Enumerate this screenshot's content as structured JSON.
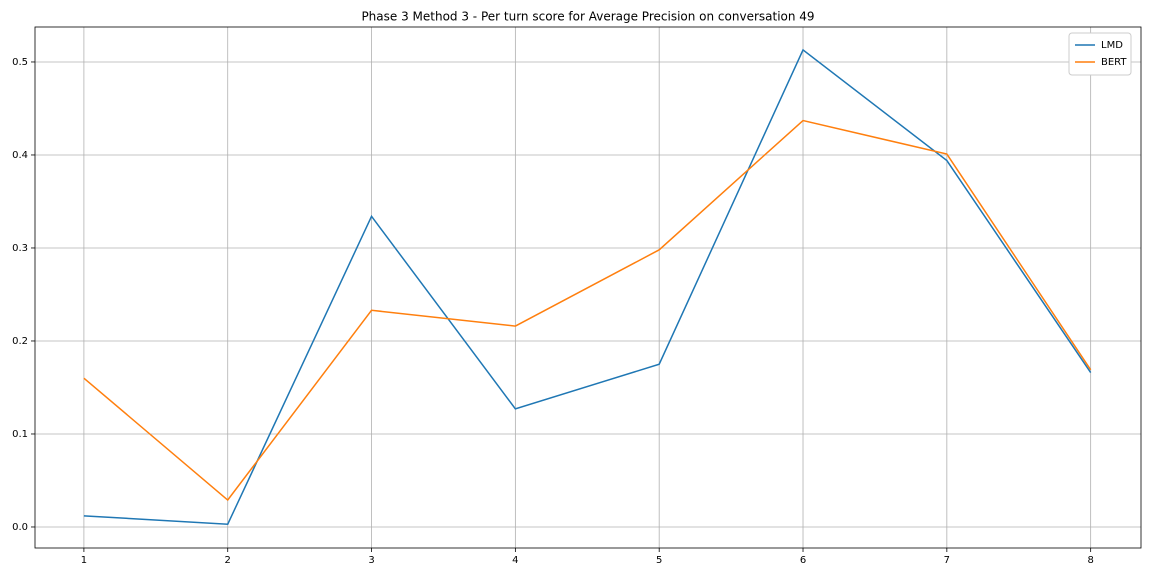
{
  "chart_data": {
    "type": "line",
    "title": "Phase 3 Method 3 - Per turn score for Average Precision on conversation 49",
    "x": [
      1,
      2,
      3,
      4,
      5,
      6,
      7,
      8
    ],
    "series": [
      {
        "name": "LMD",
        "color": "#1f77b4",
        "values": [
          0.012,
          0.003,
          0.334,
          0.127,
          0.175,
          0.513,
          0.394,
          0.166
        ]
      },
      {
        "name": "BERT",
        "color": "#ff7f0e",
        "values": [
          0.16,
          0.029,
          0.233,
          0.216,
          0.298,
          0.437,
          0.401,
          0.169
        ]
      }
    ],
    "xlim": [
      0.66,
      8.35
    ],
    "xticks": [
      1,
      2,
      3,
      4,
      5,
      6,
      7,
      8
    ],
    "ylim": [
      -0.0226,
      0.5376
    ],
    "yticks": [
      {
        "value": 0,
        "label": "0.0"
      },
      0.1,
      0.2,
      0.3,
      0.4,
      0.5
    ],
    "grid": true,
    "legend": "upper right"
  }
}
